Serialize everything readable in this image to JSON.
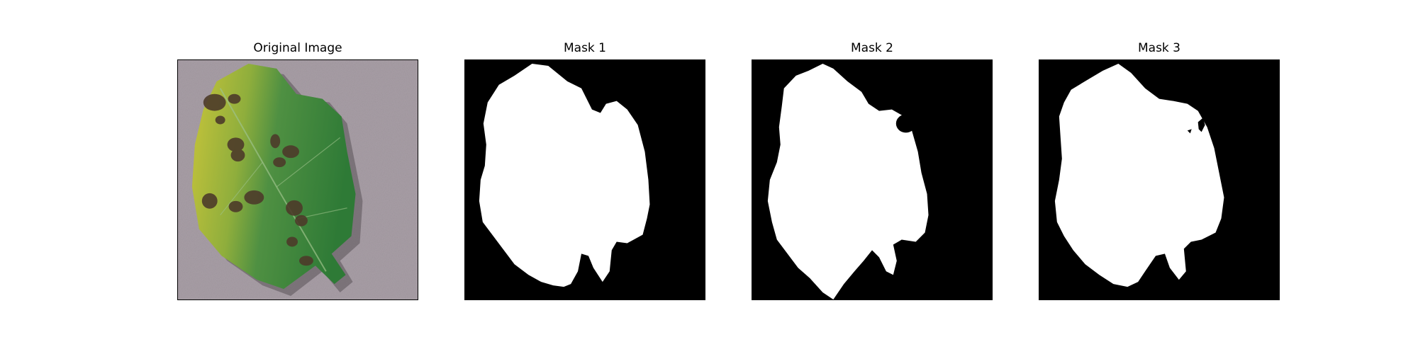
{
  "panels": [
    {
      "title": "Original Image"
    },
    {
      "title": "Mask 1"
    },
    {
      "title": "Mask 2"
    },
    {
      "title": "Mask 3"
    }
  ],
  "colors": {
    "background": "#a89ea6",
    "leaf_green": "#3f8a3c",
    "leaf_yellow": "#c4c23a",
    "lesion": "#4d3b2a",
    "mask_bg": "#000000",
    "mask_fg": "#ffffff"
  }
}
